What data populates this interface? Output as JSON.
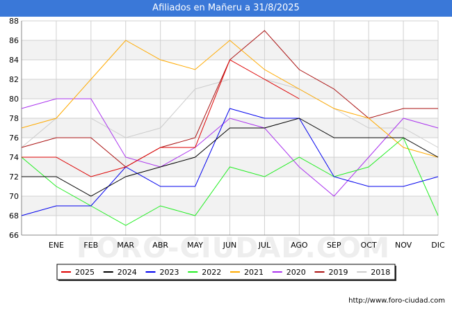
{
  "header": {
    "title": "Afiliados en Mañeru a 31/8/2025"
  },
  "footer": {
    "url": "http://www.foro-ciudad.com"
  },
  "watermark": "FORO-CIUDAD.COM",
  "chart_data": {
    "type": "line",
    "title": "Afiliados en Mañeru a 31/8/2025",
    "categories": [
      "",
      "ENE",
      "FEB",
      "MAR",
      "ABR",
      "MAY",
      "JUN",
      "JUL",
      "AGO",
      "SEP",
      "OCT",
      "NOV",
      "DIC"
    ],
    "ylim": [
      66,
      88
    ],
    "yticks": [
      66,
      68,
      70,
      72,
      74,
      76,
      78,
      80,
      82,
      84,
      86,
      88
    ],
    "grid": true,
    "legend_position": "bottom",
    "series": [
      {
        "name": "2025",
        "color": "#dd0000",
        "values": [
          74,
          74,
          72,
          73,
          75,
          75,
          84,
          82,
          80,
          null,
          null,
          null,
          null
        ]
      },
      {
        "name": "2024",
        "color": "#000000",
        "values": [
          72,
          72,
          70,
          72,
          73,
          74,
          77,
          77,
          78,
          76,
          76,
          76,
          74
        ]
      },
      {
        "name": "2023",
        "color": "#0000ee",
        "values": [
          68,
          69,
          69,
          73,
          71,
          71,
          79,
          78,
          78,
          72,
          71,
          71,
          72
        ]
      },
      {
        "name": "2022",
        "color": "#22ee22",
        "values": [
          74,
          71,
          69,
          67,
          69,
          68,
          73,
          72,
          74,
          72,
          73,
          76,
          68
        ]
      },
      {
        "name": "2021",
        "color": "#ffaa00",
        "values": [
          77,
          78,
          82,
          86,
          84,
          83,
          86,
          83,
          81,
          79,
          78,
          75,
          74
        ]
      },
      {
        "name": "2020",
        "color": "#aa33ee",
        "values": [
          79,
          80,
          80,
          74,
          73,
          75,
          78,
          77,
          73,
          70,
          74,
          78,
          77
        ]
      },
      {
        "name": "2019",
        "color": "#aa1111",
        "values": [
          75,
          76,
          76,
          73,
          75,
          76,
          84,
          87,
          83,
          81,
          78,
          79,
          79
        ]
      },
      {
        "name": "2018",
        "color": "#cccccc",
        "values": [
          75,
          78,
          78,
          76,
          77,
          81,
          82,
          82,
          81,
          79,
          77,
          77,
          75
        ]
      }
    ]
  }
}
